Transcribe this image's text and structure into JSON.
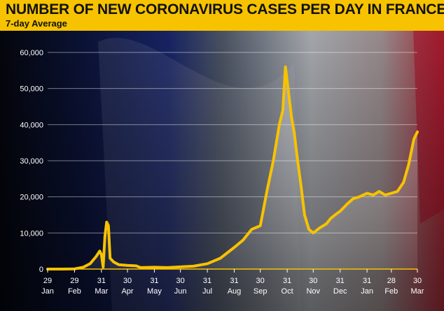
{
  "header": {
    "title": "NUMBER OF NEW CORONAVIRUS CASES PER DAY IN FRANCE",
    "subtitle": "7-day Average"
  },
  "colors": {
    "header_bg": "#f7c200",
    "line": "#f7c200",
    "flag_blue": "#1c2b7a",
    "flag_red": "#c8102e"
  },
  "chart_data": {
    "type": "area",
    "title": "NUMBER OF NEW CORONAVIRUS CASES PER DAY IN FRANCE",
    "subtitle": "7-day Average",
    "xlabel": "",
    "ylabel": "",
    "ylim": [
      0,
      60000
    ],
    "grid": true,
    "yticks": [
      {
        "value": 0,
        "label": "0"
      },
      {
        "value": 10000,
        "label": "10,000"
      },
      {
        "value": 20000,
        "label": "20,000"
      },
      {
        "value": 30000,
        "label": "30,000"
      },
      {
        "value": 40000,
        "label": "40,000"
      },
      {
        "value": 50000,
        "label": "50,000"
      },
      {
        "value": 60000,
        "label": "60,000"
      }
    ],
    "xticks": [
      {
        "date": "2020-01-29",
        "day": "29",
        "month": "Jan"
      },
      {
        "date": "2020-02-29",
        "day": "29",
        "month": "Feb"
      },
      {
        "date": "2020-03-31",
        "day": "31",
        "month": "Mar"
      },
      {
        "date": "2020-04-30",
        "day": "30",
        "month": "Apr"
      },
      {
        "date": "2020-05-31",
        "day": "31",
        "month": "May"
      },
      {
        "date": "2020-06-30",
        "day": "30",
        "month": "Jun"
      },
      {
        "date": "2020-07-31",
        "day": "31",
        "month": "Jul"
      },
      {
        "date": "2020-08-31",
        "day": "31",
        "month": "Aug"
      },
      {
        "date": "2020-09-30",
        "day": "30",
        "month": "Sep"
      },
      {
        "date": "2020-10-31",
        "day": "31",
        "month": "Oct"
      },
      {
        "date": "2020-11-30",
        "day": "30",
        "month": "Nov"
      },
      {
        "date": "2020-12-31",
        "day": "31",
        "month": "Dec"
      },
      {
        "date": "2021-01-31",
        "day": "31",
        "month": "Jan"
      },
      {
        "date": "2021-02-28",
        "day": "28",
        "month": "Feb"
      },
      {
        "date": "2021-03-30",
        "day": "30",
        "month": "Mar"
      }
    ],
    "series": [
      {
        "points": [
          [
            "2020-01-29",
            0
          ],
          [
            "2020-02-15",
            0
          ],
          [
            "2020-02-29",
            50
          ],
          [
            "2020-03-10",
            500
          ],
          [
            "2020-03-18",
            1500
          ],
          [
            "2020-03-25",
            3500
          ],
          [
            "2020-03-29",
            5000
          ],
          [
            "2020-03-31",
            4000
          ],
          [
            "2020-04-02",
            500
          ],
          [
            "2020-04-04",
            9000
          ],
          [
            "2020-04-06",
            13000
          ],
          [
            "2020-04-08",
            12000
          ],
          [
            "2020-04-10",
            3000
          ],
          [
            "2020-04-14",
            2000
          ],
          [
            "2020-04-20",
            1200
          ],
          [
            "2020-04-30",
            1000
          ],
          [
            "2020-05-10",
            900
          ],
          [
            "2020-05-15",
            400
          ],
          [
            "2020-05-31",
            500
          ],
          [
            "2020-06-15",
            400
          ],
          [
            "2020-06-30",
            600
          ],
          [
            "2020-07-15",
            800
          ],
          [
            "2020-07-31",
            1500
          ],
          [
            "2020-08-15",
            3000
          ],
          [
            "2020-08-31",
            6000
          ],
          [
            "2020-09-10",
            8000
          ],
          [
            "2020-09-20",
            11000
          ],
          [
            "2020-09-30",
            12000
          ],
          [
            "2020-10-08",
            22000
          ],
          [
            "2020-10-15",
            30000
          ],
          [
            "2020-10-22",
            40000
          ],
          [
            "2020-10-26",
            44000
          ],
          [
            "2020-10-29",
            56000
          ],
          [
            "2020-11-02",
            48000
          ],
          [
            "2020-11-05",
            42000
          ],
          [
            "2020-11-08",
            38000
          ],
          [
            "2020-11-12",
            30000
          ],
          [
            "2020-11-16",
            23000
          ],
          [
            "2020-11-20",
            15000
          ],
          [
            "2020-11-25",
            11000
          ],
          [
            "2020-11-30",
            10000
          ],
          [
            "2020-12-08",
            11500
          ],
          [
            "2020-12-15",
            12500
          ],
          [
            "2020-12-20",
            14000
          ],
          [
            "2020-12-25",
            15000
          ],
          [
            "2020-12-31",
            16000
          ],
          [
            "2021-01-08",
            18000
          ],
          [
            "2021-01-15",
            19500
          ],
          [
            "2021-01-22",
            20000
          ],
          [
            "2021-01-31",
            21000
          ],
          [
            "2021-02-07",
            20500
          ],
          [
            "2021-02-14",
            21500
          ],
          [
            "2021-02-21",
            20500
          ],
          [
            "2021-02-28",
            21000
          ],
          [
            "2021-03-07",
            21500
          ],
          [
            "2021-03-14",
            24000
          ],
          [
            "2021-03-20",
            29000
          ],
          [
            "2021-03-26",
            36000
          ],
          [
            "2021-03-30",
            38000
          ]
        ]
      }
    ]
  }
}
